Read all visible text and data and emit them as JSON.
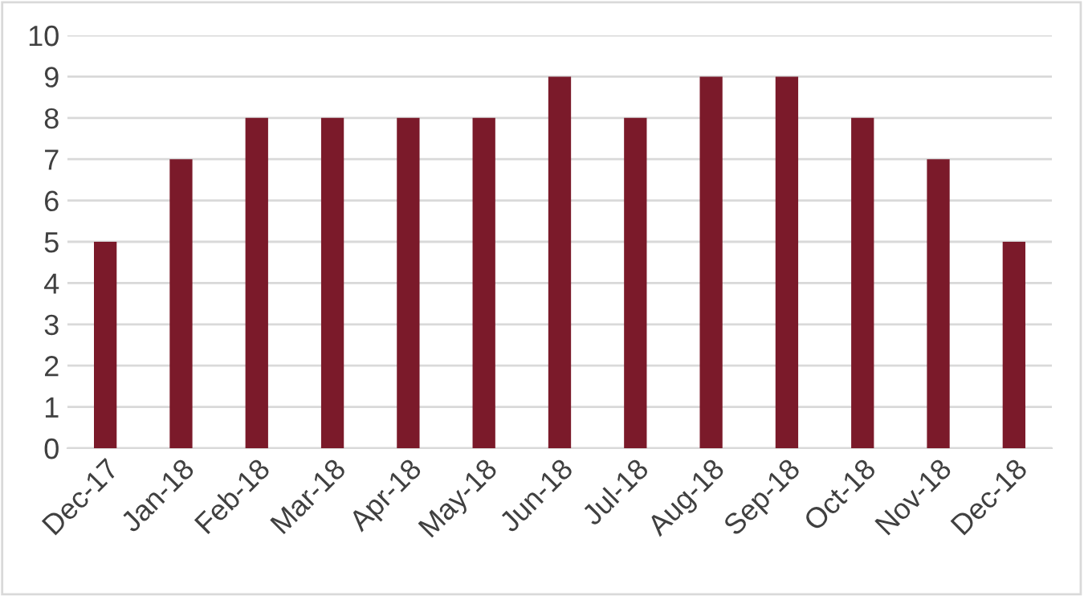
{
  "chart_data": {
    "type": "bar",
    "categories": [
      "Dec-17",
      "Jan-18",
      "Feb-18",
      "Mar-18",
      "Apr-18",
      "May-18",
      "Jun-18",
      "Jul-18",
      "Aug-18",
      "Sep-18",
      "Oct-18",
      "Nov-18",
      "Dec-18"
    ],
    "values": [
      5,
      7,
      8,
      8,
      8,
      8,
      9,
      8,
      9,
      9,
      8,
      7,
      5
    ],
    "color": "#7b1a2a",
    "ylim": [
      0,
      10
    ],
    "yticks": [
      0,
      1,
      2,
      3,
      4,
      5,
      6,
      7,
      8,
      9,
      10
    ],
    "grid": "y",
    "legend": false
  }
}
